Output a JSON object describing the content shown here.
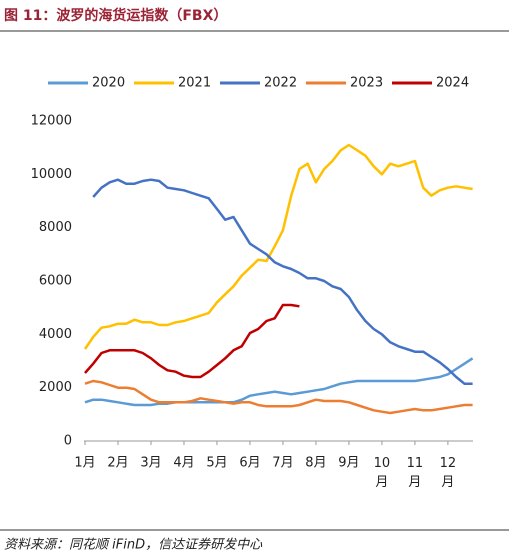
{
  "chart_data": {
    "type": "line",
    "title": "图 11：波罗的海货运指数（FBX）",
    "source": "资料来源：同花顺 iFinD，信达证券研发中心",
    "x": [
      1,
      1.25,
      1.5,
      1.75,
      2,
      2.25,
      2.5,
      2.75,
      3,
      3.25,
      3.5,
      3.75,
      4,
      4.25,
      4.5,
      4.75,
      5,
      5.25,
      5.5,
      5.75,
      6,
      6.25,
      6.5,
      6.75,
      7,
      7.25,
      7.5,
      7.75,
      8,
      8.25,
      8.5,
      8.75,
      9,
      9.25,
      9.5,
      9.75,
      10,
      10.25,
      10.5,
      10.75,
      11,
      11.25,
      11.5,
      11.75,
      12,
      12.25,
      12.5,
      12.75
    ],
    "xlim": [
      1,
      12.7
    ],
    "xticks": [
      {
        "value": 1,
        "label": "1月"
      },
      {
        "value": 2,
        "label": "2月"
      },
      {
        "value": 3,
        "label": "3月"
      },
      {
        "value": 4,
        "label": "4月"
      },
      {
        "value": 5,
        "label": "5月"
      },
      {
        "value": 6,
        "label": "6月"
      },
      {
        "value": 7,
        "label": "7月"
      },
      {
        "value": 8,
        "label": "8月"
      },
      {
        "value": 9,
        "label": "9月"
      },
      {
        "value": 10,
        "label": "10月"
      },
      {
        "value": 11,
        "label": "11月"
      },
      {
        "value": 12,
        "label": "12月"
      }
    ],
    "ylim": [
      0,
      12000
    ],
    "yticks": [
      0,
      2000,
      4000,
      6000,
      8000,
      10000,
      12000
    ],
    "grid": false,
    "legend": "top",
    "series": [
      {
        "name": "2020",
        "color": "#5b9bd5",
        "values": [
          1450,
          1550,
          1550,
          1500,
          1450,
          1400,
          1350,
          1350,
          1350,
          1400,
          1400,
          1450,
          1450,
          1450,
          1450,
          1450,
          1450,
          1450,
          1450,
          1550,
          1700,
          1750,
          1800,
          1850,
          1800,
          1750,
          1800,
          1850,
          1900,
          1950,
          2050,
          2150,
          2200,
          2250,
          2250,
          2250,
          2250,
          2250,
          2250,
          2250,
          2250,
          2300,
          2350,
          2400,
          2500,
          2700,
          2900,
          3100
        ]
      },
      {
        "name": "2021",
        "color": "#ffc000",
        "values": [
          3450,
          3900,
          4250,
          4300,
          4400,
          4400,
          4550,
          4450,
          4450,
          4350,
          4350,
          4450,
          4500,
          4600,
          4700,
          4800,
          5200,
          5500,
          5800,
          6200,
          6500,
          6800,
          6750,
          7300,
          7900,
          9200,
          10200,
          10400,
          9700,
          10200,
          10500,
          10900,
          11100,
          10900,
          10700,
          10300,
          10000,
          10400,
          10300,
          10400,
          10500,
          9500,
          9200,
          9400,
          9500,
          9550,
          9500,
          9450
        ]
      },
      {
        "name": "2022",
        "color": "#4472c4",
        "values": [
          null,
          9150,
          9500,
          9700,
          9800,
          9650,
          9650,
          9750,
          9800,
          9750,
          9500,
          9450,
          9400,
          9300,
          9200,
          9100,
          8700,
          8300,
          8400,
          7900,
          7400,
          7200,
          7000,
          6700,
          6550,
          6450,
          6300,
          6100,
          6100,
          6000,
          5800,
          5700,
          5400,
          4900,
          4500,
          4200,
          4000,
          3700,
          3550,
          3450,
          3350,
          3350,
          3150,
          2950,
          2700,
          2400,
          2150,
          2150
        ]
      },
      {
        "name": "2023",
        "color": "#ed7d31",
        "values": [
          2150,
          2250,
          2200,
          2100,
          2000,
          2000,
          1950,
          1750,
          1550,
          1450,
          1450,
          1450,
          1450,
          1500,
          1600,
          1550,
          1500,
          1450,
          1400,
          1450,
          1450,
          1350,
          1300,
          1300,
          1300,
          1300,
          1350,
          1450,
          1550,
          1500,
          1500,
          1500,
          1450,
          1350,
          1250,
          1150,
          1100,
          1050,
          1100,
          1150,
          1200,
          1150,
          1150,
          1200,
          1250,
          1300,
          1350,
          1350
        ]
      },
      {
        "name": "2024",
        "color": "#c00000",
        "values": [
          2550,
          2900,
          3300,
          3400,
          3400,
          3400,
          3400,
          3300,
          3100,
          2850,
          2650,
          2600,
          2450,
          2400,
          2400,
          2600,
          2850,
          3100,
          3400,
          3550,
          4050,
          4200,
          4500,
          4600,
          5100,
          5100,
          5050,
          null,
          null,
          null,
          null,
          null,
          null,
          null,
          null,
          null,
          null,
          null,
          null,
          null,
          null,
          null,
          null,
          null,
          null,
          null,
          null,
          null
        ]
      }
    ]
  }
}
